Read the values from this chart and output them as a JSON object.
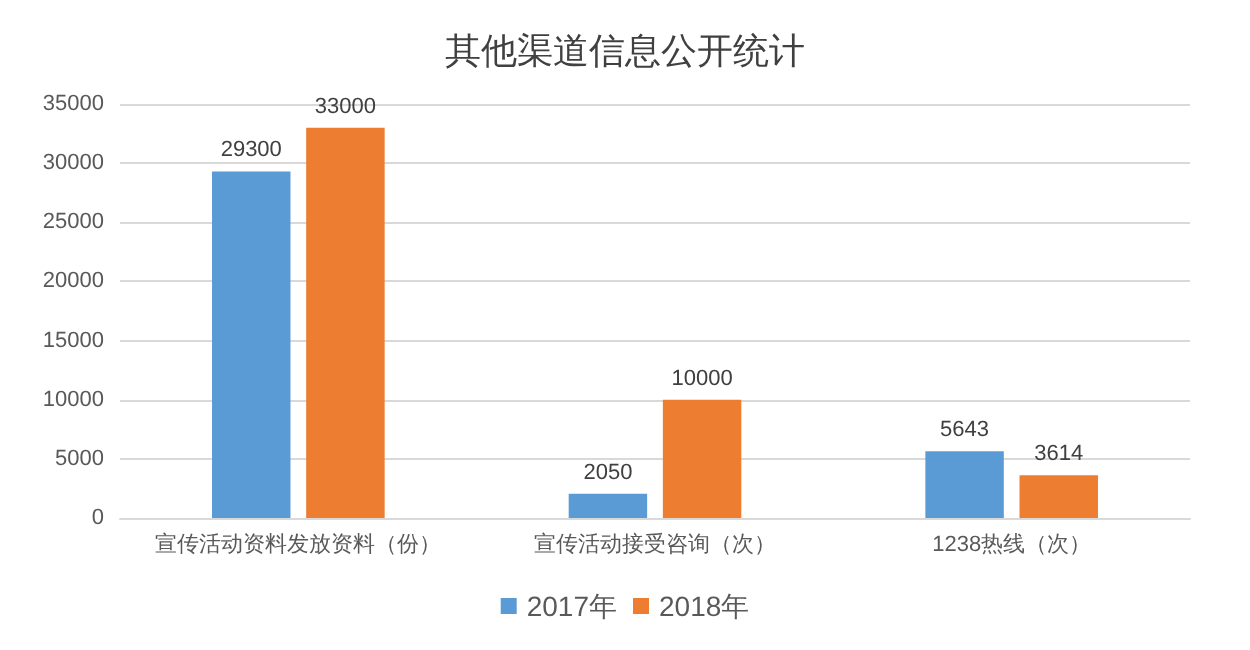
{
  "chart_data": {
    "type": "bar",
    "title": "其他渠道信息公开统计",
    "categories": [
      "宣传活动资料发放资料（份）",
      "宣传活动接受咨询（次）",
      "1238热线（次）"
    ],
    "series": [
      {
        "name": "2017年",
        "color": "#5b9bd5",
        "values": [
          29300,
          2050,
          5643
        ]
      },
      {
        "name": "2018年",
        "color": "#ed7d31",
        "values": [
          33000,
          10000,
          3614
        ]
      }
    ],
    "ylim": [
      0,
      35000
    ],
    "yticks": [
      0,
      5000,
      10000,
      15000,
      20000,
      25000,
      30000,
      35000
    ],
    "grid": "y",
    "legend": "bottom",
    "data_labels": true
  }
}
